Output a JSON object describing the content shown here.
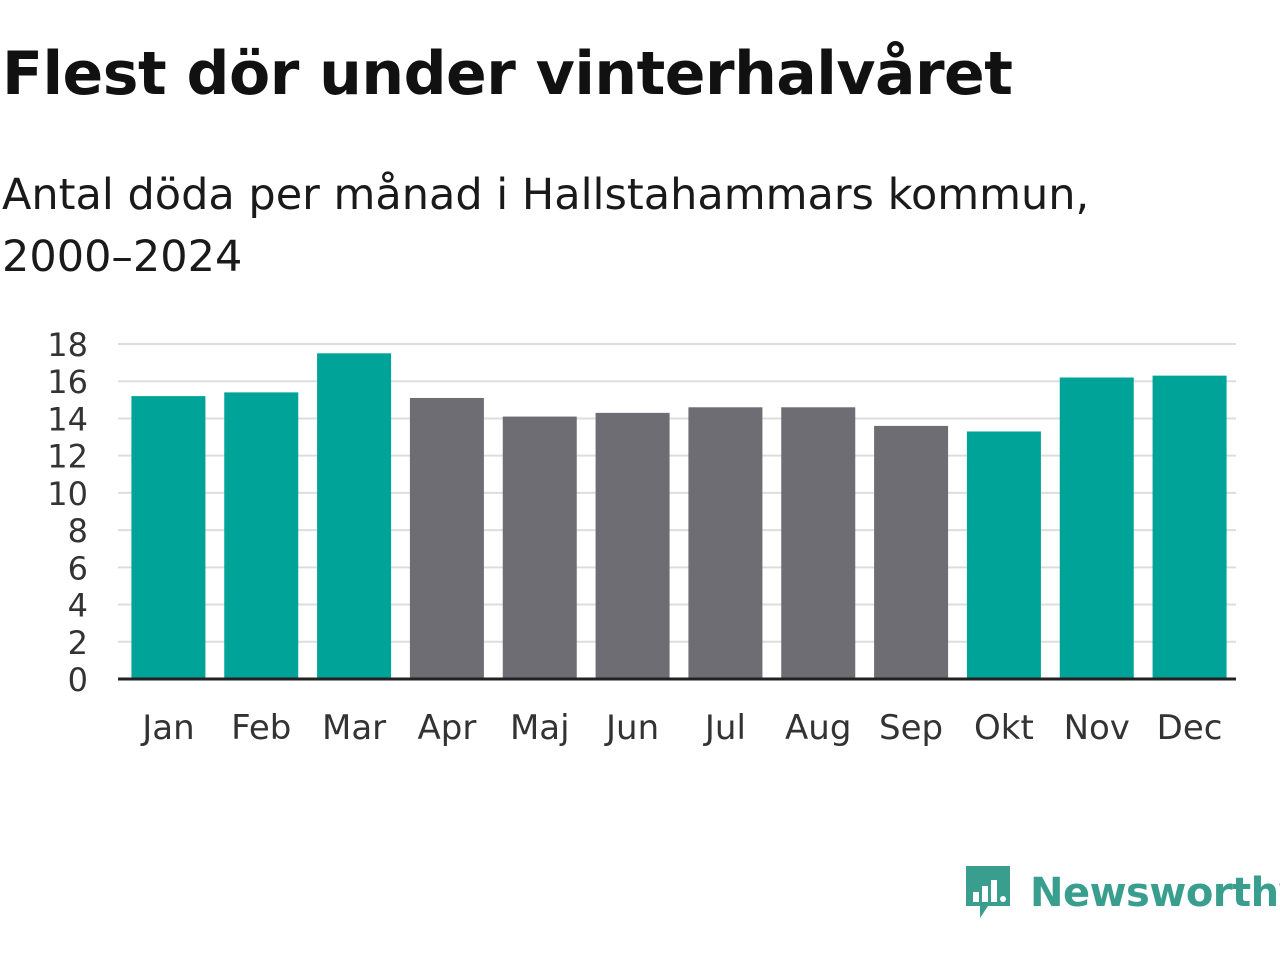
{
  "header": {
    "title": "Flest dör under vinterhalvåret",
    "subtitle": "Antal döda per månad i Hallstahammars kommun, 2000–2024"
  },
  "brand": {
    "name": "Newsworthy",
    "color": "#3a9e8f"
  },
  "colors": {
    "highlight": "#00a398",
    "default": "#6e6d74",
    "grid": "#dddddd",
    "axis": "#222222"
  },
  "chart_data": {
    "type": "bar",
    "title": "Flest dör under vinterhalvåret",
    "subtitle": "Antal döda per månad i Hallstahammars kommun, 2000–2024",
    "xlabel": "",
    "ylabel": "",
    "categories": [
      "Jan",
      "Feb",
      "Mar",
      "Apr",
      "Maj",
      "Jun",
      "Jul",
      "Aug",
      "Sep",
      "Okt",
      "Nov",
      "Dec"
    ],
    "values": [
      15.2,
      15.4,
      17.5,
      15.1,
      14.1,
      14.3,
      14.6,
      14.6,
      13.6,
      13.3,
      16.2,
      16.3
    ],
    "highlighted": [
      true,
      true,
      true,
      false,
      false,
      false,
      false,
      false,
      false,
      true,
      true,
      true
    ],
    "ylim": [
      0,
      18
    ],
    "yticks": [
      0,
      2,
      4,
      6,
      8,
      10,
      12,
      14,
      16,
      18
    ],
    "grid": true,
    "legend": "none"
  }
}
